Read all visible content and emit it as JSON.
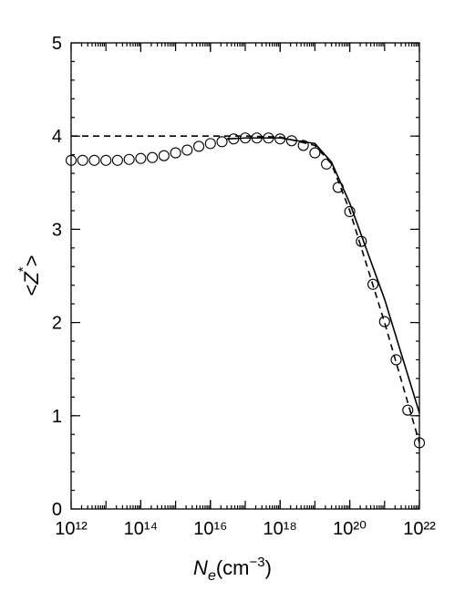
{
  "chart_data": {
    "type": "line",
    "xlabel": {
      "symbol": "N",
      "subscript": "e",
      "unit": "(cm",
      "exponent": "−3",
      "close": ")"
    },
    "ylabel": {
      "open": "<",
      "symbol": "Z",
      "superscript": "*",
      "close": ">"
    },
    "xscale": "log",
    "xlim": [
      1000000000000.0,
      1e+22
    ],
    "xticks": [
      {
        "value": 1000000000000.0,
        "label": "10¹²"
      },
      {
        "value": 100000000000000.0,
        "label": "10¹⁴"
      },
      {
        "value": 1e+16,
        "label": "10¹⁶"
      },
      {
        "value": 1e+18,
        "label": "10¹⁸"
      },
      {
        "value": 1e+20,
        "label": "10²⁰"
      },
      {
        "value": 1e+22,
        "label": "10²²"
      }
    ],
    "ylim": [
      0,
      5
    ],
    "yticks": [
      0,
      1,
      2,
      3,
      4,
      5
    ],
    "series": [
      {
        "color": "#000000",
        "linestyle": "dashed",
        "marker": "none",
        "x": [
          1000000000000.0,
          1e+17,
          1e+18,
          1e+19,
          3e+19,
          1e+20,
          1e+21,
          1e+22
        ],
        "values": [
          4.0,
          4.0,
          3.99,
          3.9,
          3.7,
          3.2,
          2.0,
          0.71
        ]
      },
      {
        "color": "#000000",
        "linestyle": "solid",
        "marker": "none",
        "x": [
          3e+16,
          1e+17,
          1e+18,
          1e+19,
          3e+19,
          1e+20,
          1e+21,
          1e+22
        ],
        "values": [
          3.97,
          3.98,
          3.98,
          3.92,
          3.72,
          3.28,
          2.25,
          1.03
        ]
      },
      {
        "color": "#000000",
        "linestyle": "none",
        "marker": "circle",
        "x": [
          1000000000000.0,
          2150000000000.0,
          4640000000000.0,
          10000000000000.0,
          21500000000000.0,
          46400000000000.0,
          100000000000000.0,
          215000000000000.0,
          464000000000000.0,
          1000000000000000.0,
          2150000000000000.0,
          4640000000000000.0,
          1e+16,
          2.15e+16,
          4.64e+16,
          1e+17,
          2.15e+17,
          4.64e+17,
          1e+18,
          2.15e+18,
          4.64e+18,
          1e+19,
          2.15e+19,
          4.64e+19,
          1e+20,
          2.15e+20,
          4.64e+20,
          1e+21,
          2.15e+21,
          4.64e+21,
          1e+22
        ],
        "values": [
          3.74,
          3.74,
          3.74,
          3.74,
          3.74,
          3.75,
          3.76,
          3.77,
          3.79,
          3.82,
          3.85,
          3.89,
          3.92,
          3.94,
          3.97,
          3.98,
          3.98,
          3.98,
          3.97,
          3.95,
          3.9,
          3.82,
          3.7,
          3.45,
          3.19,
          2.87,
          2.41,
          2.01,
          1.6,
          1.06,
          0.71
        ]
      }
    ]
  }
}
